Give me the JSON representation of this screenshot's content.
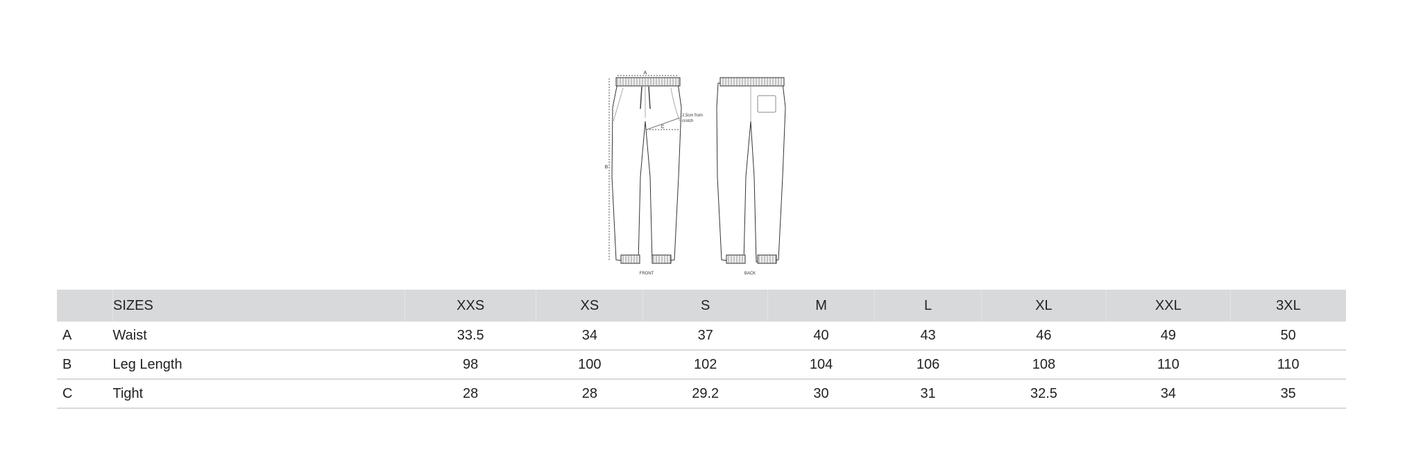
{
  "drawing": {
    "front_label": "FRONT",
    "back_label": "BACK",
    "measure_a": "A",
    "measure_b": "B",
    "measure_c": "C",
    "note_line1": "2,5cm from",
    "note_line2": "crotch"
  },
  "table": {
    "header_label": "SIZES",
    "sizes": [
      "XXS",
      "XS",
      "S",
      "M",
      "L",
      "XL",
      "XXL",
      "3XL"
    ],
    "rows": [
      {
        "key": "A",
        "name": "Waist",
        "values": [
          "33.5",
          "34",
          "37",
          "40",
          "43",
          "46",
          "49",
          "50"
        ]
      },
      {
        "key": "B",
        "name": "Leg Length",
        "values": [
          "98",
          "100",
          "102",
          "104",
          "106",
          "108",
          "110",
          "110"
        ]
      },
      {
        "key": "C",
        "name": "Tight",
        "values": [
          "28",
          "28",
          "29.2",
          "30",
          "31",
          "32.5",
          "34",
          "35"
        ]
      }
    ]
  }
}
